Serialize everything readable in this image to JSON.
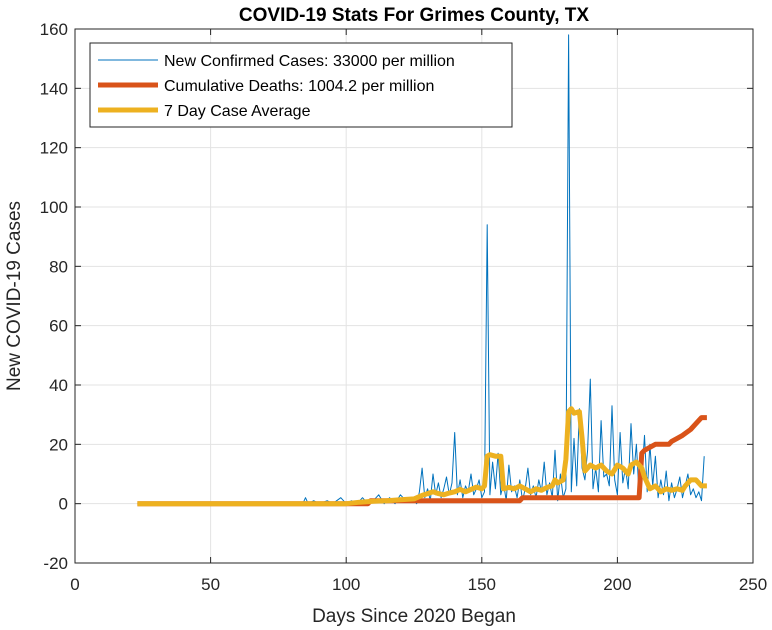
{
  "chart_data": {
    "type": "line",
    "title": "COVID-19 Stats For Grimes County, TX",
    "xlabel": "Days Since 2020 Began",
    "ylabel": "New COVID-19 Cases",
    "xlim": [
      0,
      250
    ],
    "ylim": [
      -20,
      160
    ],
    "xticks": [
      0,
      50,
      100,
      150,
      200,
      250
    ],
    "yticks": [
      -20,
      0,
      20,
      40,
      60,
      80,
      100,
      120,
      140,
      160
    ],
    "xtick_labels": [
      "0",
      "50",
      "100",
      "150",
      "200",
      "250"
    ],
    "ytick_labels": [
      "-20",
      "0",
      "20",
      "40",
      "60",
      "80",
      "100",
      "120",
      "140",
      "160"
    ],
    "grid": true,
    "legend_position": "top-left",
    "series": [
      {
        "name": "New Confirmed Cases: 33000 per million",
        "color": "#0072BD",
        "line_style": "thin",
        "points": [
          [
            23,
            0
          ],
          [
            50,
            0
          ],
          [
            84,
            0
          ],
          [
            85,
            2
          ],
          [
            86,
            0
          ],
          [
            88,
            1
          ],
          [
            90,
            0
          ],
          [
            93,
            1
          ],
          [
            95,
            0
          ],
          [
            98,
            2
          ],
          [
            100,
            0
          ],
          [
            102,
            1
          ],
          [
            104,
            0
          ],
          [
            106,
            2
          ],
          [
            108,
            0
          ],
          [
            110,
            1
          ],
          [
            112,
            3
          ],
          [
            114,
            0
          ],
          [
            116,
            2
          ],
          [
            118,
            0
          ],
          [
            120,
            3
          ],
          [
            122,
            1
          ],
          [
            124,
            2
          ],
          [
            126,
            0
          ],
          [
            127,
            4
          ],
          [
            128,
            12
          ],
          [
            129,
            2
          ],
          [
            130,
            5
          ],
          [
            131,
            1
          ],
          [
            132,
            10
          ],
          [
            133,
            3
          ],
          [
            134,
            7
          ],
          [
            135,
            2
          ],
          [
            136,
            5
          ],
          [
            137,
            9
          ],
          [
            138,
            3
          ],
          [
            139,
            7
          ],
          [
            140,
            24
          ],
          [
            141,
            3
          ],
          [
            142,
            8
          ],
          [
            143,
            2
          ],
          [
            144,
            6
          ],
          [
            145,
            4
          ],
          [
            146,
            10
          ],
          [
            147,
            3
          ],
          [
            148,
            5
          ],
          [
            149,
            8
          ],
          [
            150,
            2
          ],
          [
            151,
            4
          ],
          [
            152,
            94
          ],
          [
            153,
            3
          ],
          [
            154,
            14
          ],
          [
            155,
            5
          ],
          [
            156,
            17
          ],
          [
            157,
            3
          ],
          [
            158,
            7
          ],
          [
            159,
            1
          ],
          [
            160,
            13
          ],
          [
            161,
            4
          ],
          [
            162,
            6
          ],
          [
            163,
            2
          ],
          [
            164,
            8
          ],
          [
            165,
            1
          ],
          [
            166,
            5
          ],
          [
            167,
            12
          ],
          [
            168,
            3
          ],
          [
            169,
            6
          ],
          [
            170,
            2
          ],
          [
            171,
            8
          ],
          [
            172,
            4
          ],
          [
            173,
            14
          ],
          [
            174,
            3
          ],
          [
            175,
            7
          ],
          [
            176,
            2
          ],
          [
            177,
            18
          ],
          [
            178,
            1
          ],
          [
            179,
            10
          ],
          [
            180,
            2
          ],
          [
            181,
            5
          ],
          [
            182,
            158
          ],
          [
            183,
            4
          ],
          [
            184,
            22
          ],
          [
            185,
            6
          ],
          [
            186,
            32
          ],
          [
            187,
            12
          ],
          [
            188,
            8
          ],
          [
            189,
            18
          ],
          [
            190,
            42
          ],
          [
            191,
            5
          ],
          [
            192,
            12
          ],
          [
            193,
            4
          ],
          [
            194,
            28
          ],
          [
            195,
            9
          ],
          [
            196,
            10
          ],
          [
            197,
            6
          ],
          [
            198,
            33
          ],
          [
            199,
            8
          ],
          [
            200,
            3
          ],
          [
            201,
            24
          ],
          [
            202,
            7
          ],
          [
            203,
            12
          ],
          [
            204,
            5
          ],
          [
            205,
            27
          ],
          [
            206,
            10
          ],
          [
            207,
            20
          ],
          [
            208,
            3
          ],
          [
            209,
            9
          ],
          [
            210,
            23
          ],
          [
            211,
            4
          ],
          [
            212,
            20
          ],
          [
            213,
            6
          ],
          [
            214,
            16
          ],
          [
            215,
            2
          ],
          [
            216,
            8
          ],
          [
            217,
            3
          ],
          [
            218,
            11
          ],
          [
            219,
            1
          ],
          [
            220,
            7
          ],
          [
            221,
            2
          ],
          [
            222,
            5
          ],
          [
            223,
            9
          ],
          [
            224,
            2
          ],
          [
            225,
            6
          ],
          [
            226,
            10
          ],
          [
            227,
            3
          ],
          [
            228,
            5
          ],
          [
            229,
            2
          ],
          [
            230,
            4
          ],
          [
            231,
            1
          ],
          [
            232,
            16
          ]
        ]
      },
      {
        "name": "Cumulative Deaths: 1004.2 per million",
        "color": "#D95319",
        "line_style": "thick",
        "points": [
          [
            23,
            0
          ],
          [
            84,
            0
          ],
          [
            108,
            0
          ],
          [
            109,
            1
          ],
          [
            125,
            1
          ],
          [
            126,
            1
          ],
          [
            164,
            1
          ],
          [
            165,
            2
          ],
          [
            208,
            2
          ],
          [
            209,
            17
          ],
          [
            210,
            18
          ],
          [
            212,
            19
          ],
          [
            214,
            20
          ],
          [
            219,
            20
          ],
          [
            220,
            21
          ],
          [
            222,
            22
          ],
          [
            224,
            23
          ],
          [
            227,
            25
          ],
          [
            229,
            27
          ],
          [
            231,
            29
          ],
          [
            233,
            29
          ]
        ]
      },
      {
        "name": "7 Day Case Average",
        "color": "#EDB120",
        "line_style": "thick",
        "points": [
          [
            23,
            0
          ],
          [
            84,
            0
          ],
          [
            100,
            0
          ],
          [
            105,
            0.5
          ],
          [
            110,
            0.8
          ],
          [
            115,
            1
          ],
          [
            120,
            1.3
          ],
          [
            125,
            1.6
          ],
          [
            128,
            2.8
          ],
          [
            130,
            3.4
          ],
          [
            132,
            4
          ],
          [
            134,
            3.4
          ],
          [
            136,
            3
          ],
          [
            138,
            3.6
          ],
          [
            140,
            4
          ],
          [
            142,
            4.8
          ],
          [
            144,
            4
          ],
          [
            146,
            4.8
          ],
          [
            148,
            5.6
          ],
          [
            150,
            5
          ],
          [
            151,
            6
          ],
          [
            152,
            16
          ],
          [
            153,
            16.5
          ],
          [
            155,
            16
          ],
          [
            157,
            16
          ],
          [
            158,
            5
          ],
          [
            160,
            5.5
          ],
          [
            162,
            5
          ],
          [
            164,
            6
          ],
          [
            166,
            5
          ],
          [
            168,
            4
          ],
          [
            170,
            5
          ],
          [
            172,
            4.5
          ],
          [
            174,
            5.5
          ],
          [
            176,
            6
          ],
          [
            177,
            8
          ],
          [
            178,
            7
          ],
          [
            180,
            8
          ],
          [
            181,
            15
          ],
          [
            182,
            31
          ],
          [
            183,
            32
          ],
          [
            184,
            30.5
          ],
          [
            186,
            31
          ],
          [
            187,
            22
          ],
          [
            188,
            11
          ],
          [
            190,
            13
          ],
          [
            192,
            12
          ],
          [
            194,
            13
          ],
          [
            196,
            11
          ],
          [
            198,
            10
          ],
          [
            200,
            13
          ],
          [
            202,
            12
          ],
          [
            204,
            10
          ],
          [
            205,
            13
          ],
          [
            207,
            14
          ],
          [
            209,
            12
          ],
          [
            210,
            9
          ],
          [
            212,
            5
          ],
          [
            214,
            6
          ],
          [
            216,
            4
          ],
          [
            218,
            5
          ],
          [
            220,
            4.5
          ],
          [
            222,
            5
          ],
          [
            224,
            4.5
          ],
          [
            225,
            6
          ],
          [
            226,
            7
          ],
          [
            227,
            8
          ],
          [
            229,
            8
          ],
          [
            231,
            6
          ],
          [
            233,
            6
          ]
        ]
      }
    ]
  }
}
